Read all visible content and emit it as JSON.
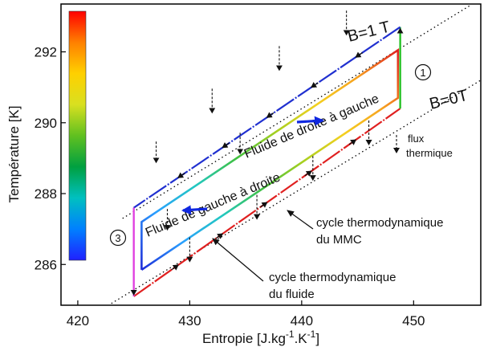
{
  "chart_data": {
    "type": "line",
    "title": "",
    "xlabel": "Entropie [J.kg-1.K-1]",
    "xlabel_parts": {
      "base": "Entropie [J.kg",
      "sup1": "-1",
      "mid": ".K",
      "sup2": "-1",
      "end": "]"
    },
    "ylabel": "Température [K]",
    "xlim": [
      418.5,
      456
    ],
    "ylim": [
      284.85,
      293.35
    ],
    "xticks": [
      420,
      430,
      440,
      450
    ],
    "yticks": [
      286,
      288,
      290,
      292
    ],
    "grid": false,
    "isofield_lines": [
      {
        "name": "B=1 T",
        "color": "#000000",
        "points": [
          [
            424,
            287.3
          ],
          [
            455,
            293.3
          ]
        ]
      },
      {
        "name": "B=0T",
        "color": "#000000",
        "points": [
          [
            423,
            284.9
          ],
          [
            456,
            291.2
          ]
        ]
      }
    ],
    "mmc_cycle": {
      "label": "cycle thermodynamique du MMC",
      "segments": [
        {
          "from": [
            425,
            285.1
          ],
          "to": [
            448.8,
            290.4
          ],
          "color": "#e02020",
          "style": "dashed-red"
        },
        {
          "from": [
            448.8,
            290.4
          ],
          "to": [
            448.8,
            292.7
          ],
          "color": "#22c022"
        },
        {
          "from": [
            448.8,
            292.7
          ],
          "to": [
            425,
            287.6
          ],
          "color": "#2030d0",
          "style": "dashed-blue"
        },
        {
          "from": [
            425,
            287.6
          ],
          "to": [
            425,
            285.1
          ],
          "color": "#e040e0"
        }
      ]
    },
    "fluid_cycle": {
      "label": "cycle thermodynamique du fluide",
      "gradient_colors": [
        "#1e2bd8",
        "#2aa0ff",
        "#22c8c0",
        "#40c040",
        "#a8d020",
        "#f4d020",
        "#f6a020",
        "#e02020"
      ],
      "points": [
        [
          425.7,
          285.85
        ],
        [
          448.6,
          290.7
        ],
        [
          448.6,
          292.05
        ],
        [
          425.7,
          287.2
        ],
        [
          425.7,
          285.85
        ]
      ]
    },
    "colorbar": {
      "colors": [
        "#ff0000",
        "#ff8000",
        "#ffd000",
        "#d8e020",
        "#60c020",
        "#00a040",
        "#00c0c0",
        "#0080ff",
        "#2020ff"
      ]
    },
    "annotations": {
      "b1": "B=1 T",
      "b0": "B=0T",
      "fluid_right_to_left": "Fluide de droite à gauche",
      "fluid_left_to_right": "Fluide de gauche à droite",
      "flux_line1": "flux",
      "flux_line2": "thermique",
      "mmc_line1": "cycle thermodynamique",
      "mmc_line2": "du MMC",
      "fluid_line1": "cycle thermodynamique",
      "fluid_line2": "du fluide",
      "marker1": "1",
      "marker3": "3"
    }
  }
}
